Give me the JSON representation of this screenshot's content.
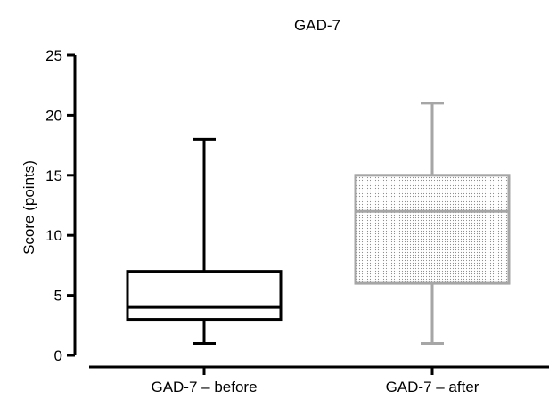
{
  "chart_data": {
    "type": "box",
    "title": "GAD-7",
    "ylabel": "Score (points)",
    "xlabel": "",
    "ylim": [
      0,
      25
    ],
    "yticks": [
      0,
      5,
      10,
      15,
      20,
      25
    ],
    "categories": [
      "GAD-7 – before",
      "GAD-7 – after"
    ],
    "series": [
      {
        "category": "GAD-7 – before",
        "min": 1,
        "q1": 3,
        "median": 4,
        "q3": 7,
        "max": 18,
        "color": "#000000",
        "fill": "none"
      },
      {
        "category": "GAD-7 – after",
        "min": 1,
        "q1": 6,
        "median": 12,
        "q3": 15,
        "max": 21,
        "color": "#a6a6a6",
        "fill": "dotted"
      }
    ],
    "grid": false,
    "legend": "none"
  }
}
